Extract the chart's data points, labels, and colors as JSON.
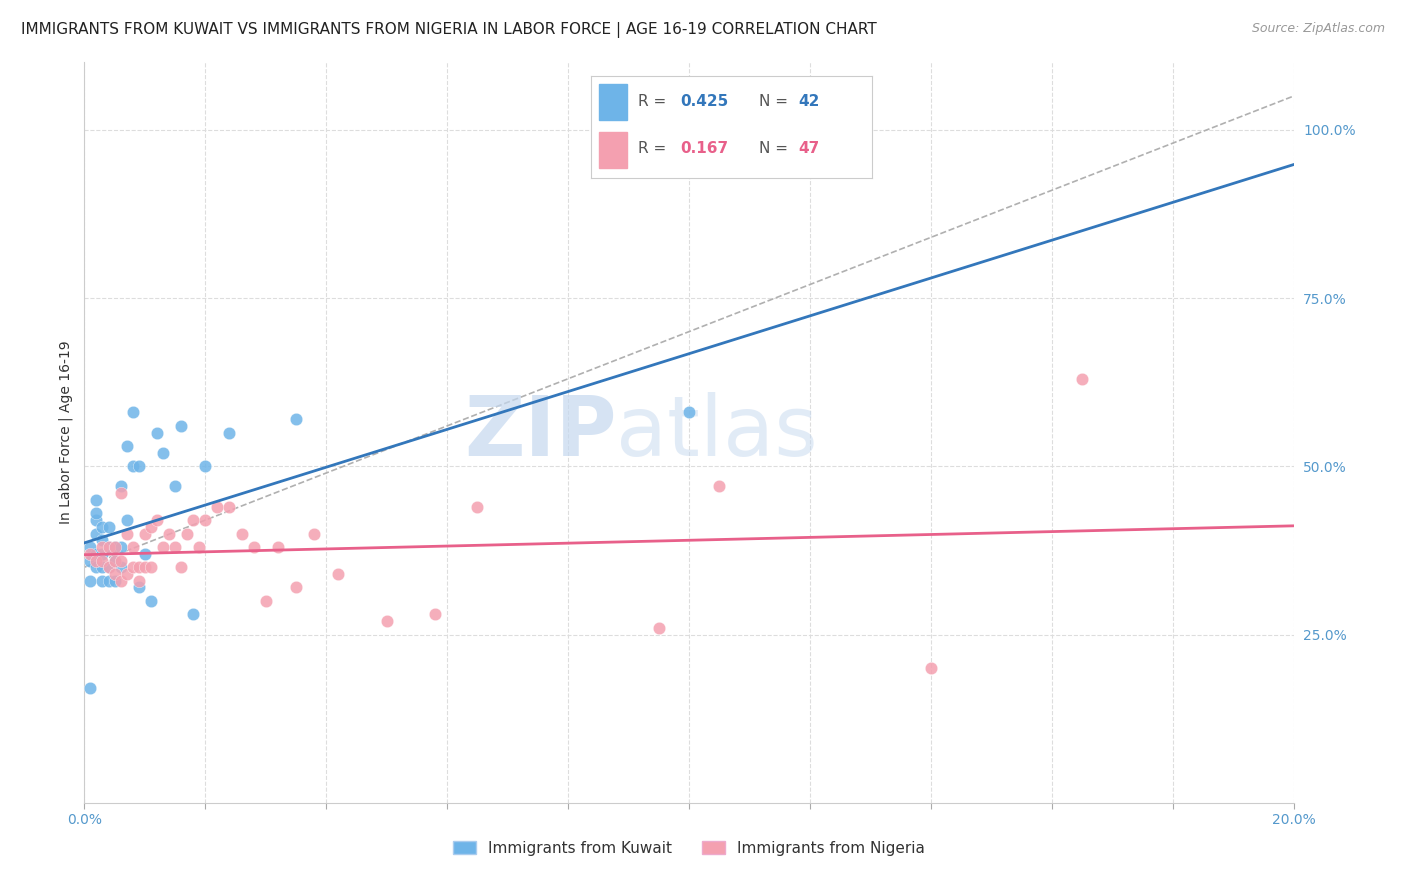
{
  "title": "IMMIGRANTS FROM KUWAIT VS IMMIGRANTS FROM NIGERIA IN LABOR FORCE | AGE 16-19 CORRELATION CHART",
  "source": "Source: ZipAtlas.com",
  "xlabel": "",
  "ylabel": "In Labor Force | Age 16-19",
  "xlim": [
    0.0,
    0.2
  ],
  "ylim": [
    0.0,
    1.1
  ],
  "xticks": [
    0.0,
    0.02,
    0.04,
    0.06,
    0.08,
    0.1,
    0.12,
    0.14,
    0.16,
    0.18,
    0.2
  ],
  "xticklabels": [
    "0.0%",
    "",
    "",
    "",
    "",
    "",
    "",
    "",
    "",
    "",
    "20.0%"
  ],
  "yticks_right": [
    0.25,
    0.5,
    0.75,
    1.0
  ],
  "ytick_right_labels": [
    "25.0%",
    "50.0%",
    "75.0%",
    "100.0%"
  ],
  "kuwait_color": "#6eb4e8",
  "nigeria_color": "#f4a0b0",
  "kuwait_line_color": "#3377bb",
  "nigeria_line_color": "#e8608a",
  "kuwait_R": 0.425,
  "kuwait_N": 42,
  "nigeria_R": 0.167,
  "nigeria_N": 47,
  "kuwait_x": [
    0.001,
    0.001,
    0.001,
    0.001,
    0.002,
    0.002,
    0.002,
    0.002,
    0.002,
    0.002,
    0.003,
    0.003,
    0.003,
    0.003,
    0.003,
    0.004,
    0.004,
    0.004,
    0.004,
    0.005,
    0.005,
    0.005,
    0.006,
    0.006,
    0.006,
    0.007,
    0.007,
    0.008,
    0.008,
    0.009,
    0.009,
    0.01,
    0.011,
    0.012,
    0.013,
    0.015,
    0.016,
    0.018,
    0.02,
    0.024,
    0.035,
    0.1
  ],
  "kuwait_y": [
    0.33,
    0.36,
    0.38,
    0.17,
    0.35,
    0.37,
    0.4,
    0.42,
    0.43,
    0.45,
    0.33,
    0.35,
    0.37,
    0.39,
    0.41,
    0.33,
    0.35,
    0.38,
    0.41,
    0.33,
    0.36,
    0.38,
    0.35,
    0.38,
    0.47,
    0.42,
    0.53,
    0.5,
    0.58,
    0.32,
    0.5,
    0.37,
    0.3,
    0.55,
    0.52,
    0.47,
    0.56,
    0.28,
    0.5,
    0.55,
    0.57,
    0.58
  ],
  "nigeria_x": [
    0.001,
    0.002,
    0.003,
    0.003,
    0.004,
    0.004,
    0.005,
    0.005,
    0.005,
    0.006,
    0.006,
    0.006,
    0.007,
    0.007,
    0.008,
    0.008,
    0.009,
    0.009,
    0.01,
    0.01,
    0.011,
    0.011,
    0.012,
    0.013,
    0.014,
    0.015,
    0.016,
    0.017,
    0.018,
    0.019,
    0.02,
    0.022,
    0.024,
    0.026,
    0.028,
    0.03,
    0.032,
    0.035,
    0.038,
    0.042,
    0.05,
    0.058,
    0.065,
    0.095,
    0.105,
    0.14,
    0.165
  ],
  "nigeria_y": [
    0.37,
    0.36,
    0.36,
    0.38,
    0.35,
    0.38,
    0.34,
    0.36,
    0.38,
    0.33,
    0.36,
    0.46,
    0.34,
    0.4,
    0.35,
    0.38,
    0.33,
    0.35,
    0.35,
    0.4,
    0.35,
    0.41,
    0.42,
    0.38,
    0.4,
    0.38,
    0.35,
    0.4,
    0.42,
    0.38,
    0.42,
    0.44,
    0.44,
    0.4,
    0.38,
    0.3,
    0.38,
    0.32,
    0.4,
    0.34,
    0.27,
    0.28,
    0.44,
    0.26,
    0.47,
    0.2,
    0.63
  ],
  "ref_line_x": [
    0.0,
    0.2
  ],
  "ref_line_y": [
    0.35,
    1.05
  ],
  "watermark_zip": "ZIP",
  "watermark_atlas": "atlas",
  "watermark_color_zip": "#c5d8ef",
  "watermark_color_atlas": "#c5d8ef",
  "background_color": "#ffffff",
  "grid_color": "#dddddd",
  "title_fontsize": 11,
  "axis_label_fontsize": 10,
  "tick_fontsize": 10,
  "legend_fontsize": 12
}
